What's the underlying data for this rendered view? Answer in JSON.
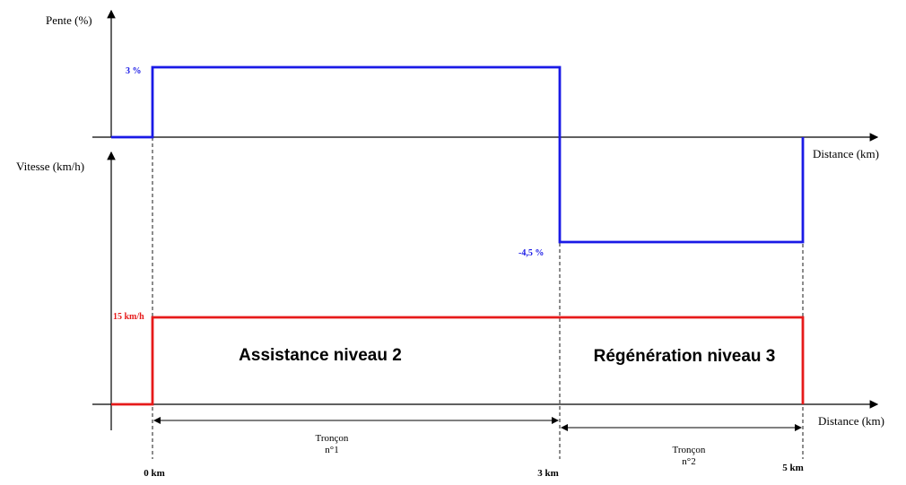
{
  "chart_data": [
    {
      "type": "line",
      "step": true,
      "ylabel": "Pente (%)",
      "xlabel": "Distance (km)",
      "series": [
        {
          "values_x": [
            -1,
            0,
            0,
            3,
            3,
            5,
            5
          ],
          "values_y": [
            0,
            0,
            3,
            3,
            -4.5,
            -4.5,
            0
          ]
        }
      ],
      "annotations": [
        {
          "text": "3 %",
          "x": 0,
          "y": 3
        },
        {
          "text": "-4,5 %",
          "x": 3,
          "y": -4.5
        }
      ],
      "color": "#1a1ae6"
    },
    {
      "type": "line",
      "step": true,
      "ylabel": "Vitesse (km/h)",
      "xlabel": "Distance (km)",
      "series": [
        {
          "values_x": [
            -1,
            0,
            0,
            5,
            5
          ],
          "values_y": [
            0,
            0,
            15,
            15,
            0
          ]
        }
      ],
      "annotations": [
        {
          "text": "15 km/h",
          "x": 0,
          "y": 15
        },
        {
          "text": "Assistance niveau 2",
          "x_from": 0,
          "x_to": 3
        },
        {
          "text": "Régénération niveau 3",
          "x_from": 3,
          "x_to": 5
        }
      ],
      "ticks": [
        "0 km",
        "3 km",
        "5 km"
      ],
      "tick_values": [
        0,
        3,
        5
      ],
      "segments": [
        {
          "line1": "Tronçon",
          "line2": "n°1",
          "from": 0,
          "to": 3
        },
        {
          "line1": "Tronçon",
          "line2": "n°2",
          "from": 3,
          "to": 5
        }
      ],
      "color": "#e61a1a"
    }
  ]
}
